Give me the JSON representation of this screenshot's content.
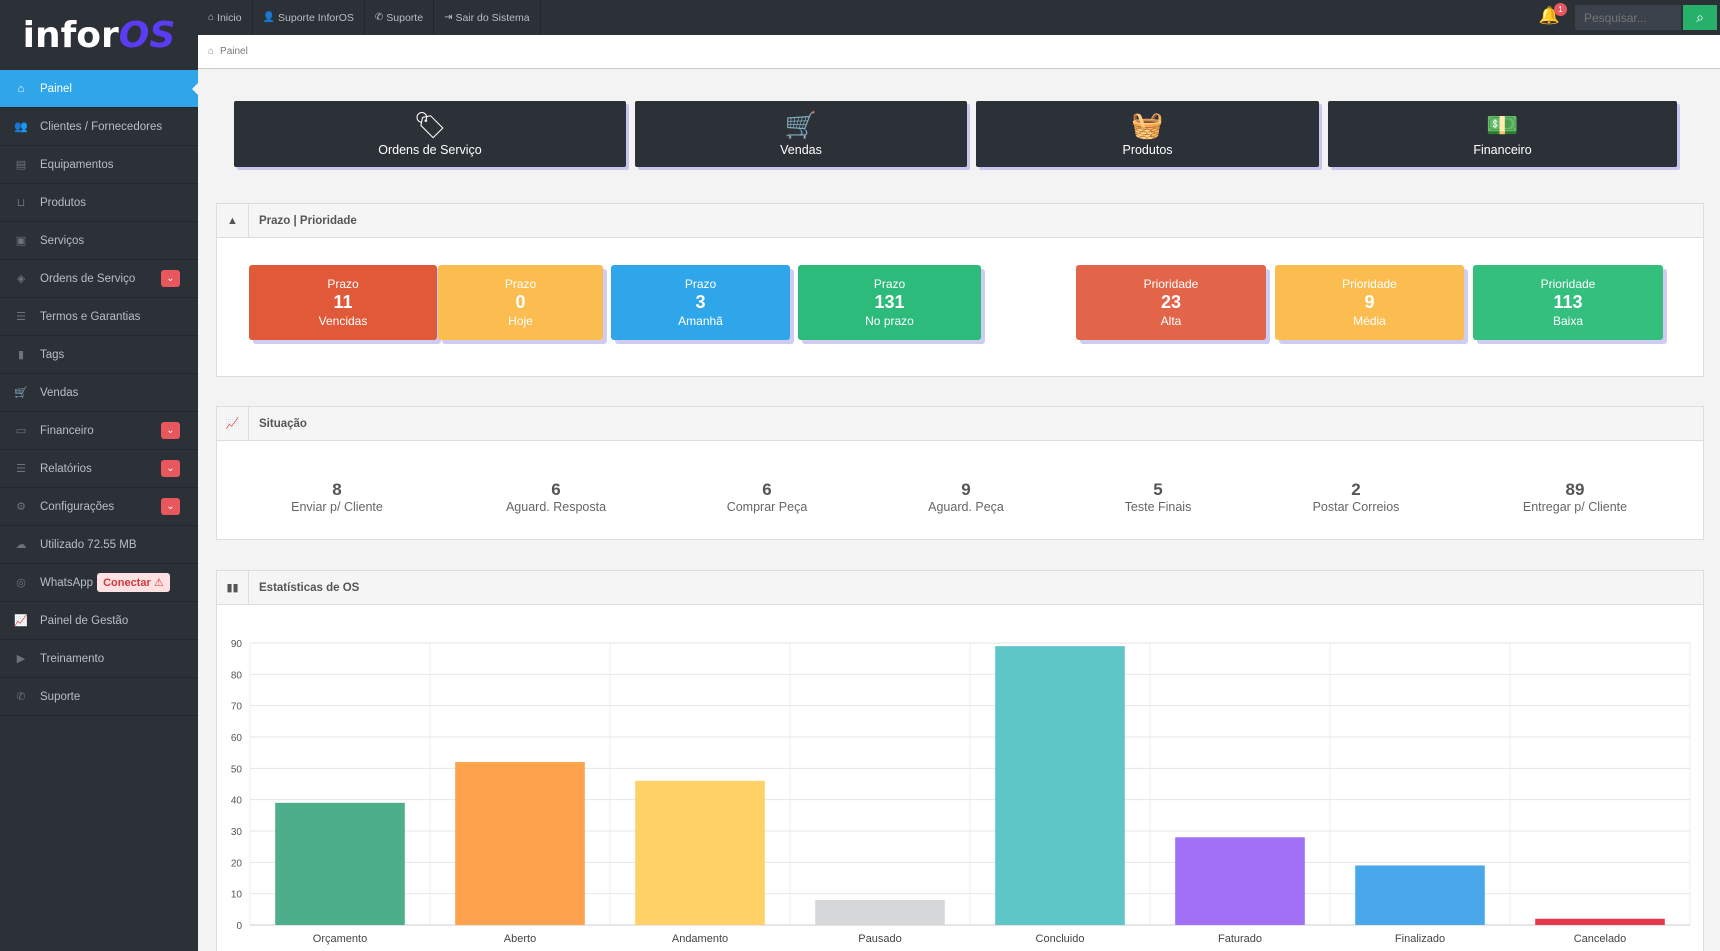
{
  "app": {
    "logo_main": "infor",
    "logo_accent": "OS"
  },
  "topbar": {
    "links": [
      "Inicio",
      "Suporte InforOS",
      "Suporte",
      "Sair do Sistema"
    ],
    "notification_count": "1",
    "search_placeholder": "Pesquisar..."
  },
  "breadcrumb": "Painel",
  "sidebar": {
    "items": [
      {
        "label": "Painel"
      },
      {
        "label": "Clientes / Fornecedores"
      },
      {
        "label": "Equipamentos"
      },
      {
        "label": "Produtos"
      },
      {
        "label": "Serviços"
      },
      {
        "label": "Ordens de Serviço"
      },
      {
        "label": "Termos e Garantias"
      },
      {
        "label": "Tags"
      },
      {
        "label": "Vendas"
      },
      {
        "label": "Financeiro"
      },
      {
        "label": "Relatórios"
      },
      {
        "label": "Configurações"
      },
      {
        "label": "Utilizado 72.55 MB"
      },
      {
        "label": "WhatsApp"
      },
      {
        "label": "Painel de Gestão"
      },
      {
        "label": "Treinamento"
      },
      {
        "label": "Suporte"
      }
    ],
    "whatsapp_button": "Conectar"
  },
  "tiles": [
    "Ordens de Serviço",
    "Vendas",
    "Produtos",
    "Financeiro"
  ],
  "prazo_panel": {
    "title": "Prazo | Prioridade",
    "cards": [
      {
        "label": "Prazo",
        "value": "11",
        "sub": "Vencidas",
        "color": "#e05a3a"
      },
      {
        "label": "Prazo",
        "value": "0",
        "sub": "Hoje",
        "color": "#fbbd4f"
      },
      {
        "label": "Prazo",
        "value": "3",
        "sub": "Amanhã",
        "color": "#2ea6e9"
      },
      {
        "label": "Prazo",
        "value": "131",
        "sub": "No prazo",
        "color": "#2cbb7a"
      },
      {
        "label": "Prioridade",
        "value": "23",
        "sub": "Alta",
        "color": "#e2654a"
      },
      {
        "label": "Prioridade",
        "value": "9",
        "sub": "Média",
        "color": "#fbbd4f"
      },
      {
        "label": "Prioridade",
        "value": "113",
        "sub": "Baixa",
        "color": "#35bf7f"
      }
    ]
  },
  "situacao_panel": {
    "title": "Situação",
    "items": [
      {
        "value": "8",
        "label": "Enviar p/ Cliente"
      },
      {
        "value": "6",
        "label": "Aguard. Resposta"
      },
      {
        "value": "6",
        "label": "Comprar Peça"
      },
      {
        "value": "9",
        "label": "Aguard. Peça"
      },
      {
        "value": "5",
        "label": "Teste Finais"
      },
      {
        "value": "2",
        "label": "Postar Correios"
      },
      {
        "value": "89",
        "label": "Entregar p/ Cliente"
      }
    ]
  },
  "stats_panel": {
    "title": "Estatísticas de OS"
  },
  "chart_data": {
    "type": "bar",
    "categories": [
      "Orçamento",
      "Aberto",
      "Andamento",
      "Pausado",
      "Concluido",
      "Faturado",
      "Finalizado",
      "Cancelado"
    ],
    "values": [
      39,
      52,
      46,
      8,
      89,
      28,
      19,
      2
    ],
    "colors": [
      "#4caf8a",
      "#fea24e",
      "#ffd166",
      "#d6d7d9",
      "#5ec6c6",
      "#a170f7",
      "#48a8ea",
      "#e8364f"
    ],
    "ylim": [
      0,
      90
    ],
    "yticks": [
      0,
      10,
      20,
      30,
      40,
      50,
      60,
      70,
      80,
      90
    ],
    "grid": true,
    "title": "",
    "xlabel": "",
    "ylabel": ""
  }
}
